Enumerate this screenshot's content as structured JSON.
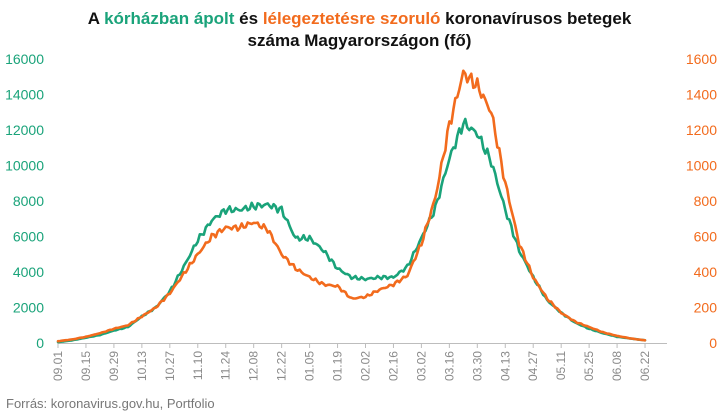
{
  "title": {
    "part1": "A ",
    "hl_green": "kórházban ápolt",
    "part2": " és ",
    "hl_orange": "lélegeztetésre szoruló",
    "part3": " koronavírusos betegek",
    "line2": "száma Magyarországon  (fő)"
  },
  "source": "Forrás: koronavirus.gov.hu, Portfolio",
  "colors": {
    "hospitalized": "#1aa37a",
    "ventilated": "#f26b1d"
  },
  "chart_data": {
    "type": "line",
    "categories": [
      "09.01",
      "09.15",
      "09.29",
      "10.13",
      "10.27",
      "11.10",
      "11.24",
      "12.08",
      "12.22",
      "01.05",
      "01.19",
      "02.02",
      "02.16",
      "03.02",
      "03.16",
      "03.30",
      "04.13",
      "04.27",
      "05.11",
      "05.25",
      "06.08",
      "06.22"
    ],
    "x_start": "09.01",
    "x_end": "07.03",
    "left_axis": {
      "ylim": [
        0,
        16000
      ],
      "ticks": [
        0,
        2000,
        4000,
        6000,
        8000,
        10000,
        12000,
        14000,
        16000
      ]
    },
    "right_axis": {
      "ylim": [
        0,
        1600
      ],
      "ticks": [
        0,
        200,
        400,
        600,
        800,
        1000,
        1200,
        1400,
        1600
      ]
    },
    "series": [
      {
        "axis": "left",
        "color": "#1aa37a",
        "points": [
          [
            0,
            50
          ],
          [
            7,
            150
          ],
          [
            14,
            300
          ],
          [
            21,
            450
          ],
          [
            28,
            700
          ],
          [
            35,
            900
          ],
          [
            42,
            1500
          ],
          [
            49,
            2000
          ],
          [
            56,
            2900
          ],
          [
            63,
            4300
          ],
          [
            70,
            5800
          ],
          [
            77,
            6900
          ],
          [
            84,
            7500
          ],
          [
            91,
            7500
          ],
          [
            98,
            7700
          ],
          [
            105,
            7800
          ],
          [
            112,
            7500
          ],
          [
            119,
            5900
          ],
          [
            126,
            5900
          ],
          [
            133,
            5200
          ],
          [
            140,
            4200
          ],
          [
            147,
            3700
          ],
          [
            154,
            3600
          ],
          [
            161,
            3700
          ],
          [
            168,
            3700
          ],
          [
            175,
            4300
          ],
          [
            182,
            5900
          ],
          [
            189,
            7600
          ],
          [
            196,
            10400
          ],
          [
            203,
            12400
          ],
          [
            210,
            11800
          ],
          [
            217,
            10200
          ],
          [
            224,
            7500
          ],
          [
            231,
            5200
          ],
          [
            238,
            3700
          ],
          [
            245,
            2400
          ],
          [
            252,
            1700
          ],
          [
            259,
            1150
          ],
          [
            266,
            800
          ],
          [
            273,
            550
          ],
          [
            280,
            350
          ],
          [
            287,
            250
          ],
          [
            294,
            150
          ]
        ]
      },
      {
        "axis": "right",
        "color": "#f26b1d",
        "points": [
          [
            0,
            10
          ],
          [
            7,
            20
          ],
          [
            14,
            35
          ],
          [
            21,
            55
          ],
          [
            28,
            80
          ],
          [
            35,
            100
          ],
          [
            42,
            150
          ],
          [
            49,
            200
          ],
          [
            56,
            280
          ],
          [
            63,
            390
          ],
          [
            70,
            500
          ],
          [
            77,
            600
          ],
          [
            84,
            650
          ],
          [
            91,
            650
          ],
          [
            98,
            680
          ],
          [
            105,
            640
          ],
          [
            112,
            500
          ],
          [
            119,
            420
          ],
          [
            126,
            370
          ],
          [
            133,
            330
          ],
          [
            140,
            320
          ],
          [
            147,
            250
          ],
          [
            154,
            260
          ],
          [
            161,
            300
          ],
          [
            168,
            330
          ],
          [
            175,
            380
          ],
          [
            182,
            560
          ],
          [
            189,
            820
          ],
          [
            196,
            1230
          ],
          [
            203,
            1520
          ],
          [
            210,
            1450
          ],
          [
            217,
            1300
          ],
          [
            224,
            900
          ],
          [
            231,
            560
          ],
          [
            238,
            370
          ],
          [
            245,
            250
          ],
          [
            252,
            170
          ],
          [
            259,
            120
          ],
          [
            266,
            90
          ],
          [
            273,
            60
          ],
          [
            280,
            40
          ],
          [
            287,
            25
          ],
          [
            294,
            15
          ]
        ]
      }
    ],
    "grid": false,
    "legend": "none"
  }
}
